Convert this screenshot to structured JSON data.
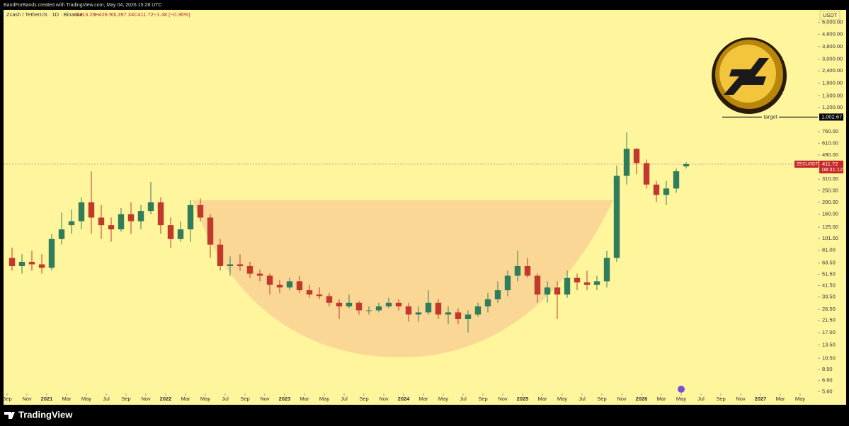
{
  "header": {
    "credit": "BandForBands created with TradingView.com, May 04, 2026 15:28 UTC"
  },
  "legend": {
    "symbol": "Zcash / TetherUS · 1D · Binance",
    "open": "O413.28",
    "high": "H428.90",
    "low": "L397.34",
    "close": "C411.72",
    "change": "−1.48 (−0.36%)"
  },
  "currency": "USDT",
  "brand": "TradingView",
  "chart_data": {
    "type": "candlestick",
    "log_scale": true,
    "grid": false,
    "up_color": "#2f7d5a",
    "down_color": "#c0392b",
    "x": [
      "2020-09",
      "2020-10",
      "2020-11",
      "2020-12",
      "2021-01",
      "2021-02",
      "2021-03",
      "2021-04",
      "2021-05",
      "2021-06",
      "2021-07",
      "2021-08",
      "2021-09",
      "2021-10",
      "2021-11",
      "2021-12",
      "2022-01",
      "2022-02",
      "2022-03",
      "2022-04",
      "2022-05",
      "2022-06",
      "2022-07",
      "2022-08",
      "2022-09",
      "2022-10",
      "2022-11",
      "2022-12",
      "2023-01",
      "2023-02",
      "2023-03",
      "2023-04",
      "2023-05",
      "2023-06",
      "2023-07",
      "2023-08",
      "2023-09",
      "2023-10",
      "2023-11",
      "2023-12",
      "2024-01",
      "2024-02",
      "2024-03",
      "2024-04",
      "2024-05",
      "2024-06",
      "2024-07",
      "2024-08",
      "2024-09",
      "2024-10",
      "2024-11",
      "2024-12",
      "2025-01",
      "2025-02",
      "2025-03",
      "2025-04",
      "2025-05",
      "2025-06",
      "2025-07",
      "2025-08",
      "2025-09",
      "2025-10",
      "2025-11",
      "2025-12",
      "2026-01",
      "2026-02",
      "2026-03",
      "2026-04",
      "2026-05"
    ],
    "open": [
      70,
      60,
      65,
      62,
      58,
      100,
      130,
      140,
      200,
      150,
      130,
      120,
      160,
      140,
      170,
      200,
      130,
      100,
      120,
      190,
      150,
      90,
      60,
      62,
      60,
      52,
      50,
      42,
      40,
      45,
      38,
      35,
      34,
      30,
      28,
      30,
      26,
      26,
      28,
      30,
      28,
      24,
      25,
      30,
      24,
      25,
      22,
      24,
      28,
      32,
      38,
      50,
      60,
      50,
      35,
      40,
      35,
      48,
      44,
      42,
      45,
      70,
      330,
      550,
      420,
      280,
      230,
      260,
      395
    ],
    "high": [
      85,
      75,
      80,
      75,
      110,
      165,
      175,
      220,
      360,
      190,
      150,
      180,
      200,
      190,
      295,
      220,
      150,
      140,
      208,
      215,
      160,
      100,
      72,
      75,
      65,
      56,
      52,
      46,
      48,
      50,
      42,
      40,
      36,
      32,
      35,
      31,
      28,
      30,
      33,
      32,
      30,
      28,
      38,
      32,
      28,
      27,
      26,
      30,
      36,
      45,
      55,
      80,
      70,
      52,
      45,
      45,
      55,
      52,
      55,
      50,
      80,
      400,
      750,
      560,
      450,
      300,
      300,
      380,
      428.9
    ],
    "low": [
      55,
      52,
      55,
      52,
      55,
      90,
      110,
      120,
      110,
      100,
      95,
      115,
      110,
      120,
      160,
      110,
      85,
      95,
      95,
      140,
      70,
      55,
      50,
      55,
      48,
      45,
      35,
      36,
      38,
      36,
      33,
      32,
      28,
      22,
      27,
      24,
      24,
      25,
      27,
      26,
      21,
      21,
      24,
      22,
      20,
      20,
      17,
      23,
      25,
      30,
      34,
      45,
      48,
      30,
      30,
      22,
      33,
      38,
      38,
      38,
      40,
      65,
      280,
      340,
      260,
      200,
      190,
      240,
      380
    ],
    "close": [
      60,
      65,
      62,
      58,
      100,
      120,
      140,
      200,
      150,
      130,
      120,
      160,
      140,
      170,
      200,
      130,
      100,
      120,
      190,
      150,
      90,
      60,
      62,
      60,
      52,
      50,
      42,
      40,
      45,
      38,
      35,
      34,
      30,
      28,
      30,
      26,
      26,
      28,
      30,
      28,
      24,
      25,
      30,
      24,
      25,
      22,
      24,
      28,
      32,
      38,
      50,
      60,
      50,
      35,
      40,
      35,
      48,
      44,
      42,
      45,
      70,
      330,
      550,
      420,
      280,
      230,
      260,
      360,
      411.72
    ],
    "xlim": [
      "2020-09",
      "2027-07"
    ],
    "xticks": [
      {
        "value": "2020-09",
        "label": "Sep"
      },
      {
        "value": "2020-11",
        "label": "Nov"
      },
      {
        "value": "2021-01",
        "label": "2021"
      },
      {
        "value": "2021-03",
        "label": "Mar"
      },
      {
        "value": "2021-05",
        "label": "May"
      },
      {
        "value": "2021-07",
        "label": "Jul"
      },
      {
        "value": "2021-09",
        "label": "Sep"
      },
      {
        "value": "2021-11",
        "label": "Nov"
      },
      {
        "value": "2022-01",
        "label": "2022"
      },
      {
        "value": "2022-03",
        "label": "Mar"
      },
      {
        "value": "2022-05",
        "label": "May"
      },
      {
        "value": "2022-07",
        "label": "Jul"
      },
      {
        "value": "2022-09",
        "label": "Sep"
      },
      {
        "value": "2022-11",
        "label": "Nov"
      },
      {
        "value": "2023-01",
        "label": "2023"
      },
      {
        "value": "2023-03",
        "label": "Mar"
      },
      {
        "value": "2023-05",
        "label": "May"
      },
      {
        "value": "2023-07",
        "label": "Jul"
      },
      {
        "value": "2023-09",
        "label": "Sep"
      },
      {
        "value": "2023-11",
        "label": "Nov"
      },
      {
        "value": "2024-01",
        "label": "2024"
      },
      {
        "value": "2024-03",
        "label": "Mar"
      },
      {
        "value": "2024-05",
        "label": "May"
      },
      {
        "value": "2024-07",
        "label": "Jul"
      },
      {
        "value": "2024-09",
        "label": "Sep"
      },
      {
        "value": "2024-11",
        "label": "Nov"
      },
      {
        "value": "2025-01",
        "label": "2025"
      },
      {
        "value": "2025-03",
        "label": "Mar"
      },
      {
        "value": "2025-05",
        "label": "May"
      },
      {
        "value": "2025-07",
        "label": "Jul"
      },
      {
        "value": "2025-09",
        "label": "Sep"
      },
      {
        "value": "2025-11",
        "label": "Nov"
      },
      {
        "value": "2026-01",
        "label": "2026"
      },
      {
        "value": "2026-03",
        "label": "Mar"
      },
      {
        "value": "2026-05",
        "label": "May"
      },
      {
        "value": "2026-07",
        "label": "Jul"
      },
      {
        "value": "2026-09",
        "label": "Sep"
      },
      {
        "value": "2026-11",
        "label": "Nov"
      },
      {
        "value": "2027-01",
        "label": "2027"
      },
      {
        "value": "2027-03",
        "label": "Mar"
      },
      {
        "value": "2027-05",
        "label": "May"
      }
    ],
    "ylim": [
      5.4,
      7600
    ],
    "yticks": [
      {
        "value": 5.6,
        "label": "5.60"
      },
      {
        "value": 6.9,
        "label": "6.90"
      },
      {
        "value": 8.5,
        "label": "8.50"
      },
      {
        "value": 10.5,
        "label": "10.50"
      },
      {
        "value": 13.5,
        "label": "13.50"
      },
      {
        "value": 17,
        "label": "17.00"
      },
      {
        "value": 21.5,
        "label": "21.50"
      },
      {
        "value": 26.5,
        "label": "26.50"
      },
      {
        "value": 33.5,
        "label": "33.50"
      },
      {
        "value": 41.5,
        "label": "41.50"
      },
      {
        "value": 51.5,
        "label": "51.50"
      },
      {
        "value": 63.5,
        "label": "63.50"
      },
      {
        "value": 81,
        "label": "81.00"
      },
      {
        "value": 101,
        "label": "101.00"
      },
      {
        "value": 125,
        "label": "125.00"
      },
      {
        "value": 160,
        "label": "160.00"
      },
      {
        "value": 200,
        "label": "200.00"
      },
      {
        "value": 250,
        "label": "250.00"
      },
      {
        "value": 310,
        "label": "310.00"
      },
      {
        "value": 490,
        "label": "490.00"
      },
      {
        "value": 610,
        "label": "610.00"
      },
      {
        "value": 760,
        "label": "760.00"
      },
      {
        "value": 1200,
        "label": "1,200.00"
      },
      {
        "value": 1500,
        "label": "1,500.00"
      },
      {
        "value": 1900,
        "label": "1,900.00"
      },
      {
        "value": 2400,
        "label": "2,400.00"
      },
      {
        "value": 3000,
        "label": "3,000.00"
      },
      {
        "value": 3800,
        "label": "3,800.00"
      },
      {
        "value": 4800,
        "label": "4,800.00"
      },
      {
        "value": 6000,
        "label": "6,000.00"
      }
    ],
    "target": {
      "name": "target",
      "value": 1002.67,
      "value_label": "1,002.67"
    },
    "last_price": {
      "symbol": "ZECUSDT",
      "value": 411.72,
      "value_label": "411.72",
      "countdown": "08:31:12"
    }
  }
}
